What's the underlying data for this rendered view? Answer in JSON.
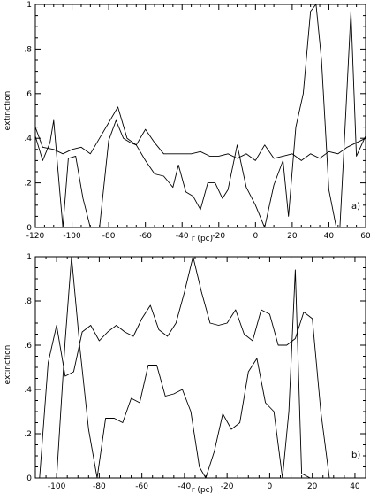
{
  "chart_data": [
    {
      "type": "line",
      "panel_label": "a)",
      "xlabel": "r (pc)",
      "ylabel": "extinction",
      "xlim": [
        -120,
        60
      ],
      "ylim": [
        0,
        1
      ],
      "x_ticks": [
        -120,
        -100,
        -80,
        -60,
        -40,
        -20,
        0,
        20,
        40,
        60
      ],
      "x_tick_labels": [
        "-120",
        "-100",
        "-80",
        "-60",
        "-40",
        "-20",
        "0",
        "20",
        "40",
        "60"
      ],
      "y_ticks": [
        0,
        0.2,
        0.4,
        0.6,
        0.8,
        1
      ],
      "y_tick_labels": [
        "0",
        ".2",
        ".4",
        ".6",
        ".8",
        "1"
      ],
      "series": [
        {
          "x": [
            -120,
            -116,
            -110,
            -105,
            -100,
            -95,
            -90,
            -85,
            -80,
            -75,
            -70,
            -65,
            -60,
            -55,
            -50,
            -45,
            -40,
            -35,
            -30,
            -25,
            -20,
            -15,
            -10,
            -5,
            0,
            5,
            10,
            15,
            20,
            25,
            30,
            35,
            40,
            45,
            50,
            55,
            60
          ],
          "y": [
            0.45,
            0.36,
            0.35,
            0.33,
            0.35,
            0.36,
            0.33,
            0.4,
            0.47,
            0.54,
            0.4,
            0.37,
            0.44,
            0.38,
            0.33,
            0.33,
            0.33,
            0.33,
            0.34,
            0.32,
            0.32,
            0.33,
            0.31,
            0.33,
            0.3,
            0.37,
            0.31,
            0.32,
            0.33,
            0.3,
            0.33,
            0.31,
            0.34,
            0.33,
            0.36,
            0.38,
            0.4
          ]
        },
        {
          "x": [
            -120,
            -116,
            -112,
            -110,
            -105,
            -102,
            -98,
            -94,
            -90,
            -85,
            -80,
            -76,
            -72,
            -68,
            -65,
            -60,
            -55,
            -50,
            -45,
            -42,
            -38,
            -34,
            -30,
            -26,
            -22,
            -18,
            -15,
            -10,
            -5,
            0,
            5,
            10,
            15,
            18,
            22,
            26,
            30,
            33,
            36,
            40,
            44,
            46,
            48,
            52,
            55,
            60
          ],
          "y": [
            0.41,
            0.3,
            0.38,
            0.48,
            0.0,
            0.31,
            0.32,
            0.13,
            0.0,
            0.0,
            0.39,
            0.48,
            0.4,
            0.38,
            0.37,
            0.3,
            0.24,
            0.23,
            0.18,
            0.28,
            0.16,
            0.14,
            0.08,
            0.2,
            0.2,
            0.13,
            0.17,
            0.37,
            0.18,
            0.1,
            0.0,
            0.19,
            0.3,
            0.05,
            0.45,
            0.6,
            0.97,
            1.0,
            0.75,
            0.17,
            0.0,
            0.0,
            0.32,
            0.97,
            0.32,
            0.41
          ]
        }
      ]
    },
    {
      "type": "line",
      "panel_label": "b)",
      "xlabel": "r (pc)",
      "ylabel": "extinction",
      "xlim": [
        -110,
        45
      ],
      "ylim": [
        0,
        1
      ],
      "x_ticks": [
        -100,
        -80,
        -60,
        -40,
        -20,
        0,
        20,
        40
      ],
      "x_tick_labels": [
        "-100",
        "-80",
        "-60",
        "-40",
        "-20",
        "0",
        "20",
        "40"
      ],
      "y_ticks": [
        0,
        0.2,
        0.4,
        0.6,
        0.8,
        1
      ],
      "y_tick_labels": [
        "0",
        ".2",
        ".4",
        ".6",
        ".8",
        "1"
      ],
      "series": [
        {
          "x": [
            -108,
            -104,
            -100,
            -96,
            -92,
            -88,
            -84,
            -80,
            -76,
            -72,
            -68,
            -64,
            -60,
            -56,
            -52,
            -48,
            -44,
            -40,
            -36,
            -32,
            -28,
            -24,
            -20,
            -16,
            -12,
            -8,
            -4,
            0,
            4,
            8,
            12,
            16,
            20,
            24,
            28,
            32
          ],
          "y": [
            0.0,
            0.52,
            0.69,
            0.46,
            0.48,
            0.66,
            0.69,
            0.62,
            0.66,
            0.69,
            0.66,
            0.64,
            0.72,
            0.78,
            0.67,
            0.64,
            0.7,
            0.84,
            1.0,
            0.84,
            0.7,
            0.69,
            0.7,
            0.76,
            0.65,
            0.62,
            0.76,
            0.74,
            0.6,
            0.6,
            0.63,
            0.75,
            0.72,
            0.3,
            0.0,
            0.0
          ]
        },
        {
          "x": [
            -100,
            -96,
            -93,
            -89,
            -85,
            -81,
            -77,
            -73,
            -69,
            -65,
            -61,
            -57,
            -53,
            -49,
            -45,
            -41,
            -37,
            -33,
            -30,
            -26,
            -22,
            -18,
            -14,
            -10,
            -6,
            -2,
            2,
            6,
            9,
            12,
            15,
            19,
            23
          ],
          "y": [
            0.0,
            0.62,
            1.0,
            0.58,
            0.22,
            0.0,
            0.27,
            0.27,
            0.25,
            0.36,
            0.34,
            0.51,
            0.51,
            0.37,
            0.38,
            0.4,
            0.3,
            0.05,
            0.0,
            0.12,
            0.29,
            0.22,
            0.25,
            0.48,
            0.54,
            0.34,
            0.3,
            0.0,
            0.3,
            0.94,
            0.02,
            0.0,
            0.0
          ]
        }
      ]
    }
  ]
}
